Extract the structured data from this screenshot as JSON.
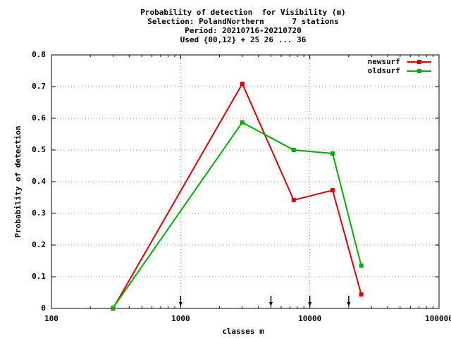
{
  "chart_data": {
    "type": "line",
    "title_lines": [
      "Probability of detection  for Visibility (m)",
      "Selection: PolandNorthern      7 stations",
      "Period: 20210716-20210720",
      "Used {00,12} + 25 26 ... 36"
    ],
    "x_label": "classes m",
    "y_label": "Probability of detection",
    "x": [
      300,
      3000,
      7500,
      15000,
      25000
    ],
    "series": [
      {
        "name": "newsurf",
        "color": "#e00000",
        "values": [
          0,
          0.709,
          0.342,
          0.373,
          0.044
        ]
      },
      {
        "name": "oldsurf",
        "color": "#00b000",
        "values": [
          0.002,
          0.587,
          0.5,
          0.489,
          0.135
        ]
      }
    ],
    "markers_x": [
      1000,
      5000,
      10000,
      20000
    ],
    "x_log": true,
    "xlim": [
      100,
      100000
    ],
    "xticks": [
      100,
      1000,
      10000,
      100000
    ],
    "ylim": [
      0,
      0.8
    ],
    "yticks": [
      0,
      0.1,
      0.2,
      0.3,
      0.4,
      0.5,
      0.6,
      0.7,
      0.8
    ],
    "grid": true,
    "legend": "top-right"
  }
}
